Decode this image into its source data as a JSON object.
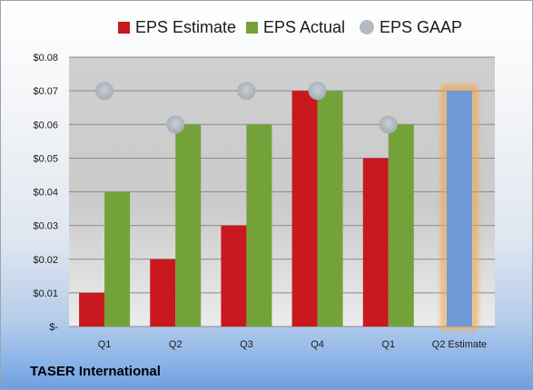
{
  "chart_data": {
    "type": "bar",
    "categories": [
      "Q1",
      "Q2",
      "Q3",
      "Q4",
      "Q1",
      "Q2 Estimate"
    ],
    "series": [
      {
        "name": "EPS Estimate",
        "type": "bar",
        "color": "#c8191e",
        "values": [
          0.01,
          0.02,
          0.03,
          0.07,
          0.05,
          null
        ]
      },
      {
        "name": "EPS Actual",
        "type": "bar",
        "color": "#73a23a",
        "values": [
          0.04,
          0.06,
          0.06,
          0.07,
          0.06,
          null
        ]
      },
      {
        "name": "EPS GAAP",
        "type": "scatter",
        "color": "#b4bac2",
        "values": [
          0.07,
          0.06,
          0.07,
          0.07,
          0.06,
          null
        ]
      }
    ],
    "projection": {
      "category": "Q2 Estimate",
      "value": 0.07,
      "color": "#6e9ad6",
      "glow": "#f4a64a"
    },
    "yticks": [
      {
        "value": 0.0,
        "label": "$-"
      },
      {
        "value": 0.01,
        "label": "$0.01"
      },
      {
        "value": 0.02,
        "label": "$0.02"
      },
      {
        "value": 0.03,
        "label": "$0.03"
      },
      {
        "value": 0.04,
        "label": "$0.04"
      },
      {
        "value": 0.05,
        "label": "$0.05"
      },
      {
        "value": 0.06,
        "label": "$0.06"
      },
      {
        "value": 0.07,
        "label": "$0.07"
      },
      {
        "value": 0.08,
        "label": "$0.08"
      }
    ],
    "ylim": [
      0,
      0.08
    ],
    "grid": true,
    "legend_position": "top"
  },
  "legend": {
    "estimate": "EPS Estimate",
    "actual": "EPS Actual",
    "gaap": "EPS GAAP"
  },
  "company": "TASER International",
  "colors": {
    "estimate": "#c8191e",
    "actual": "#73a23a",
    "gaap": "#b4bac2",
    "projection": "#6e9ad6",
    "projection_glow": "#f4a64a"
  }
}
